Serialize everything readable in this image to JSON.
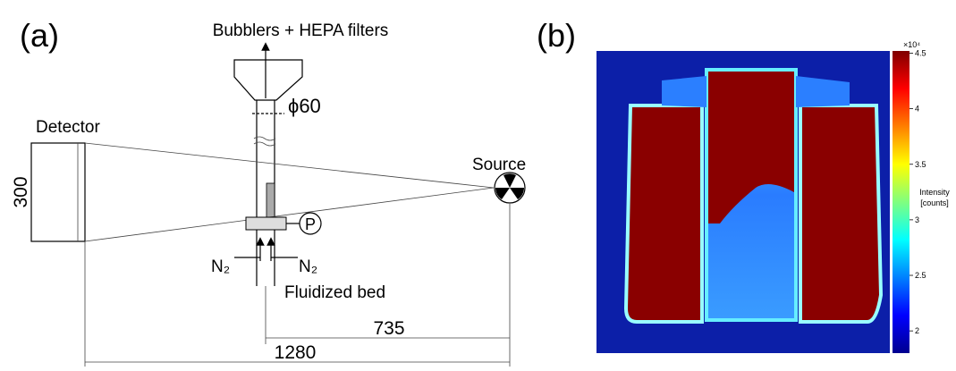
{
  "panel_a": {
    "label": "(a)",
    "outlet": "Bubblers + HEPA filters",
    "diameter": "ϕ60",
    "detector": "Detector",
    "detector_size": "300",
    "source": "Source",
    "pressure": "P",
    "gas_left": "N₂",
    "gas_right": "N₂",
    "bed": "Fluidized bed",
    "dim_bed_source": "735",
    "dim_detector_source": "1280"
  },
  "panel_b": {
    "label": "(b)",
    "colorbar": {
      "exponent": "×10⁴",
      "label": [
        "Intensity",
        "[counts]"
      ],
      "lim": [
        1.8,
        4.52
      ],
      "ticks": [
        2,
        2.5,
        3,
        3.5,
        4,
        4.5
      ]
    }
  }
}
